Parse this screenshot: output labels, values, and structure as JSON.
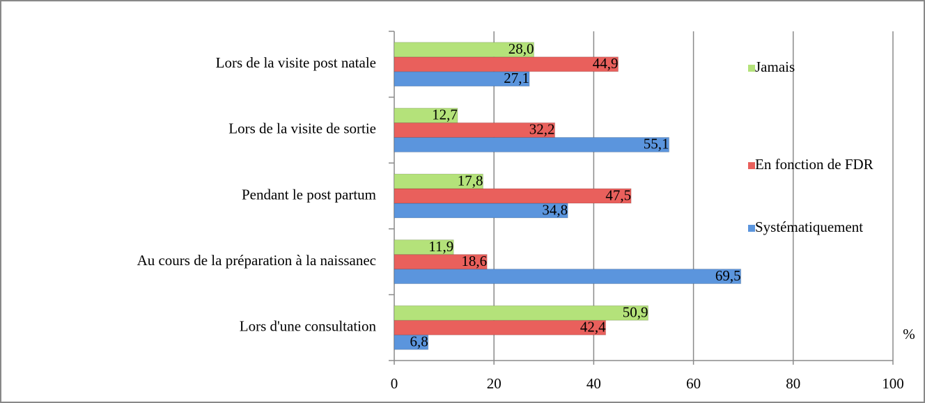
{
  "chart_data": {
    "type": "bar",
    "orientation": "horizontal",
    "categories": [
      "Lors de la visite post natale",
      "Lors de la visite de sortie",
      "Pendant le post partum",
      "Au cours de la préparation à la naissanec",
      "Lors d'une consultation"
    ],
    "series": [
      {
        "name": "Systématiquement",
        "color": "#5b95dd",
        "values": [
          27.1,
          55.1,
          34.8,
          69.5,
          6.8
        ],
        "value_labels": [
          "27,1",
          "55,1",
          "34,8",
          "69,5",
          "6,8"
        ]
      },
      {
        "name": "En fonction de FDR",
        "color": "#e9605c",
        "values": [
          44.9,
          32.2,
          47.5,
          18.6,
          42.4
        ],
        "value_labels": [
          "44,9",
          "32,2",
          "47,5",
          "18,6",
          "42,4"
        ]
      },
      {
        "name": "Jamais",
        "color": "#b4e27a",
        "values": [
          28.0,
          12.7,
          17.8,
          11.9,
          50.9
        ],
        "value_labels": [
          "28,0",
          "12,7",
          "17,8",
          "11,9",
          "50,9"
        ]
      }
    ],
    "x_label": "%",
    "xlim": [
      0,
      100
    ],
    "xticks": [
      0,
      20,
      40,
      60,
      80,
      100
    ],
    "grid": true,
    "legend": "right"
  }
}
